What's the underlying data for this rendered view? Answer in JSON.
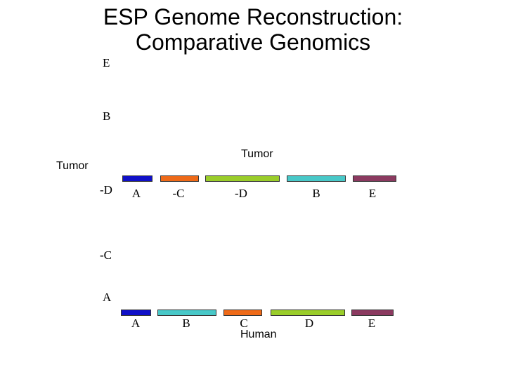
{
  "title": {
    "line1": "ESP Genome Reconstruction:",
    "line2": "Comparative Genomics"
  },
  "y_axis": {
    "labels": [
      "E",
      "B",
      "-D",
      "-C",
      "A"
    ],
    "genome_label": "Tumor"
  },
  "tumor_row": {
    "title": "Tumor",
    "segments": [
      {
        "label": "A",
        "color": "#1010c8"
      },
      {
        "label": "-C",
        "color": "#ee6a18"
      },
      {
        "label": "-D",
        "color": "#9acd2a"
      },
      {
        "label": "B",
        "color": "#48c8c8"
      },
      {
        "label": "E",
        "color": "#8b3a60"
      }
    ]
  },
  "human_row": {
    "title": "Human",
    "segments": [
      {
        "label": "A",
        "color": "#1010c8"
      },
      {
        "label": "B",
        "color": "#48c8c8"
      },
      {
        "label": "C",
        "color": "#ee6a18"
      },
      {
        "label": "D",
        "color": "#9acd2a"
      },
      {
        "label": "E",
        "color": "#8b3a60"
      }
    ]
  }
}
